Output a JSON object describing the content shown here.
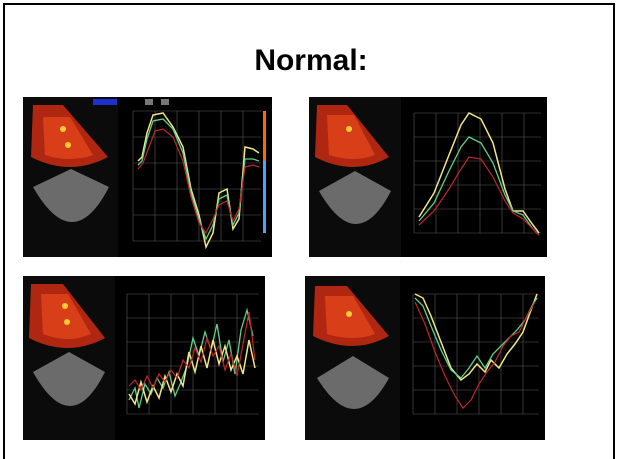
{
  "slide": {
    "title": "Normal:"
  },
  "panels": [
    {
      "label": "panel-top-left"
    },
    {
      "label": "panel-top-right"
    },
    {
      "label": "panel-bottom-left"
    },
    {
      "label": "panel-bottom-right"
    }
  ],
  "colors": {
    "background": "#000000",
    "grid": "#5a5a5a",
    "yellow": "#f0e58a",
    "green": "#5fd08a",
    "red": "#c0262e",
    "doppler_red": "#d8351c",
    "doppler_orange": "#ffb020",
    "header_blue": "#1f2fd0"
  }
}
